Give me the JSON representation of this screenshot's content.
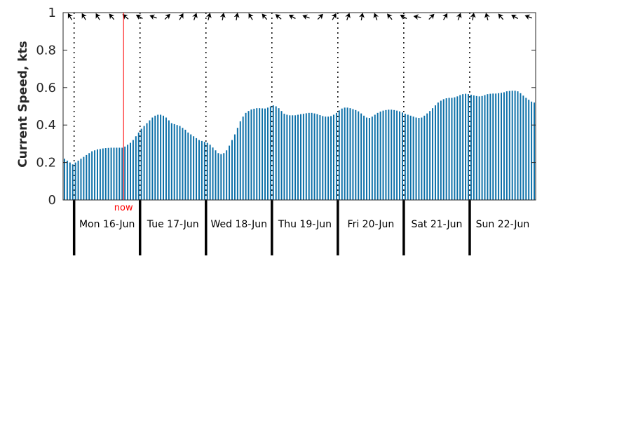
{
  "chart_data": {
    "type": "bar",
    "ylabel": "Current Speed, kts",
    "ylim": [
      0,
      1
    ],
    "yticks": [
      0,
      0.2,
      0.4,
      0.6,
      0.8,
      1
    ],
    "ytick_labels": [
      "0",
      "0.2",
      "0.4",
      "0.6",
      "0.8",
      "1"
    ],
    "x_start": "2025-06-15 20:00",
    "x_end": "2025-06-22 23:00",
    "x_interval_hours": 1,
    "day_boundaries": [
      "16-Jun 00:00",
      "17-Jun 00:00",
      "18-Jun 00:00",
      "19-Jun 00:00",
      "20-Jun 00:00",
      "21-Jun 00:00",
      "22-Jun 00:00"
    ],
    "day_labels": [
      "Mon 16-Jun",
      "Tue 17-Jun",
      "Wed 18-Jun",
      "Thu 19-Jun",
      "Fri 20-Jun",
      "Sat 21-Jun",
      "Sun 22-Jun"
    ],
    "now_marker": {
      "label": "now",
      "time": "16-Jun 18:00",
      "color": "#ff0000"
    },
    "bar_color": "#0b6fa8",
    "grid": false,
    "values": [
      0.22,
      0.21,
      0.2,
      0.19,
      0.2,
      0.21,
      0.22,
      0.23,
      0.24,
      0.25,
      0.26,
      0.265,
      0.27,
      0.272,
      0.275,
      0.277,
      0.278,
      0.279,
      0.279,
      0.279,
      0.279,
      0.279,
      0.285,
      0.295,
      0.305,
      0.32,
      0.34,
      0.36,
      0.38,
      0.395,
      0.41,
      0.425,
      0.44,
      0.45,
      0.455,
      0.455,
      0.45,
      0.44,
      0.425,
      0.41,
      0.405,
      0.4,
      0.395,
      0.385,
      0.375,
      0.36,
      0.35,
      0.34,
      0.33,
      0.32,
      0.315,
      0.31,
      0.305,
      0.295,
      0.28,
      0.265,
      0.25,
      0.245,
      0.25,
      0.265,
      0.29,
      0.32,
      0.35,
      0.385,
      0.42,
      0.445,
      0.465,
      0.475,
      0.483,
      0.487,
      0.49,
      0.49,
      0.489,
      0.488,
      0.493,
      0.5,
      0.505,
      0.5,
      0.49,
      0.475,
      0.46,
      0.455,
      0.452,
      0.452,
      0.452,
      0.455,
      0.458,
      0.46,
      0.463,
      0.465,
      0.465,
      0.462,
      0.458,
      0.453,
      0.448,
      0.445,
      0.445,
      0.448,
      0.455,
      0.465,
      0.478,
      0.488,
      0.493,
      0.493,
      0.49,
      0.485,
      0.48,
      0.473,
      0.462,
      0.45,
      0.44,
      0.438,
      0.445,
      0.455,
      0.465,
      0.472,
      0.477,
      0.48,
      0.482,
      0.482,
      0.48,
      0.477,
      0.473,
      0.467,
      0.46,
      0.455,
      0.45,
      0.445,
      0.44,
      0.438,
      0.44,
      0.45,
      0.462,
      0.475,
      0.49,
      0.505,
      0.52,
      0.53,
      0.538,
      0.543,
      0.545,
      0.545,
      0.548,
      0.553,
      0.56,
      0.565,
      0.567,
      0.565,
      0.562,
      0.558,
      0.555,
      0.553,
      0.555,
      0.56,
      0.565,
      0.567,
      0.568,
      0.568,
      0.57,
      0.572,
      0.575,
      0.58,
      0.582,
      0.583,
      0.583,
      0.58,
      0.57,
      0.557,
      0.545,
      0.535,
      0.525,
      0.52
    ],
    "direction_arrows_deg": [
      330,
      330,
      330,
      320,
      310,
      300,
      290,
      45,
      30,
      20,
      15,
      10,
      10,
      330,
      320,
      310,
      300,
      290,
      45,
      30,
      20,
      10,
      340,
      320,
      300,
      280,
      45,
      30,
      20,
      10,
      345,
      320,
      300,
      290
    ]
  },
  "icons": {
    "direction_marker": "direction-arrow-icon"
  }
}
